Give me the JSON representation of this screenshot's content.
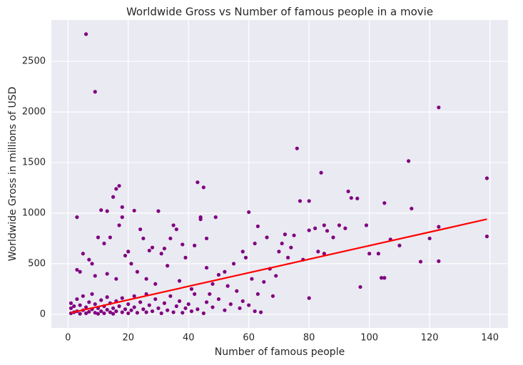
{
  "chart_data": {
    "type": "scatter",
    "title": "Worldwide Gross vs Number of famous people in a movie",
    "x_label": "Number of famous people",
    "y_label": "Worldwide Gross in millions of USD",
    "color": "#800080",
    "x": [
      6,
      9,
      123,
      76,
      113,
      84,
      139,
      43,
      45,
      17,
      16,
      93,
      96,
      94,
      15,
      77,
      80,
      105,
      114,
      11,
      13,
      22,
      30,
      60,
      3,
      44,
      44,
      49,
      85,
      99,
      86,
      107,
      123,
      139,
      120,
      103,
      117,
      123,
      97,
      104,
      105,
      80,
      65,
      68,
      64,
      88,
      82,
      80,
      72,
      75,
      71,
      74,
      70,
      66,
      63,
      62,
      58,
      59,
      55,
      52,
      50,
      48,
      46,
      46,
      42,
      38,
      39,
      35,
      36,
      34,
      32,
      31,
      28,
      27,
      25,
      24,
      20,
      19,
      18,
      18,
      17,
      14,
      12,
      10,
      7,
      5,
      4,
      3,
      8,
      9,
      13,
      16,
      21,
      23,
      26,
      29,
      33,
      37,
      41,
      47,
      53,
      56,
      61,
      67,
      69,
      73,
      78,
      83,
      85,
      90,
      92,
      100,
      110,
      1,
      1,
      1,
      2,
      2,
      3,
      3,
      4,
      4,
      5,
      5,
      6,
      6,
      7,
      7,
      8,
      8,
      9,
      9,
      10,
      10,
      11,
      11,
      12,
      12,
      13,
      13,
      14,
      14,
      15,
      15,
      16,
      16,
      17,
      18,
      18,
      19,
      20,
      20,
      21,
      22,
      22,
      23,
      24,
      25,
      26,
      26,
      27,
      28,
      29,
      30,
      31,
      32,
      33,
      34,
      35,
      36,
      37,
      38,
      39,
      40,
      41,
      42,
      43,
      45,
      46,
      48,
      50,
      52,
      54,
      57,
      58,
      60,
      62,
      63
    ],
    "values": [
      2770,
      2200,
      2045,
      1640,
      1515,
      1400,
      1345,
      1305,
      1255,
      1270,
      1240,
      1215,
      1145,
      1150,
      1160,
      1120,
      1120,
      1100,
      1045,
      1030,
      1020,
      1025,
      1020,
      1010,
      960,
      960,
      940,
      960,
      880,
      880,
      825,
      740,
      865,
      770,
      750,
      600,
      520,
      525,
      270,
      360,
      360,
      160,
      320,
      180,
      20,
      760,
      850,
      830,
      790,
      780,
      700,
      660,
      620,
      760,
      870,
      700,
      620,
      560,
      500,
      420,
      390,
      300,
      460,
      750,
      680,
      690,
      560,
      880,
      840,
      750,
      650,
      600,
      660,
      630,
      750,
      840,
      620,
      580,
      1060,
      960,
      880,
      760,
      700,
      760,
      540,
      600,
      420,
      440,
      500,
      380,
      400,
      350,
      500,
      420,
      350,
      300,
      480,
      330,
      250,
      200,
      280,
      230,
      350,
      450,
      380,
      560,
      540,
      620,
      600,
      880,
      850,
      600,
      680,
      10,
      60,
      110,
      20,
      80,
      150,
      30,
      5,
      90,
      40,
      180,
      10,
      70,
      120,
      25,
      50,
      200,
      15,
      100,
      60,
      5,
      140,
      30,
      80,
      10,
      170,
      45,
      20,
      110,
      60,
      5,
      130,
      30,
      80,
      20,
      160,
      50,
      100,
      10,
      40,
      180,
      70,
      15,
      120,
      50,
      200,
      20,
      90,
      30,
      150,
      60,
      10,
      110,
      40,
      180,
      20,
      80,
      130,
      15,
      60,
      100,
      30,
      200,
      50,
      10,
      120,
      70,
      150,
      40,
      100,
      60,
      130,
      90,
      30,
      200
    ],
    "trend_line": {
      "x": [
        1,
        139
      ],
      "values": [
        15,
        940
      ],
      "color": "#ff0000"
    },
    "xlim": [
      -5.5,
      146
    ],
    "ylim": [
      -135,
      2910
    ],
    "xticks": [
      0,
      20,
      40,
      60,
      80,
      100,
      120,
      140
    ],
    "yticks": [
      0,
      500,
      1000,
      1500,
      2000,
      2500
    ],
    "grid": true
  }
}
